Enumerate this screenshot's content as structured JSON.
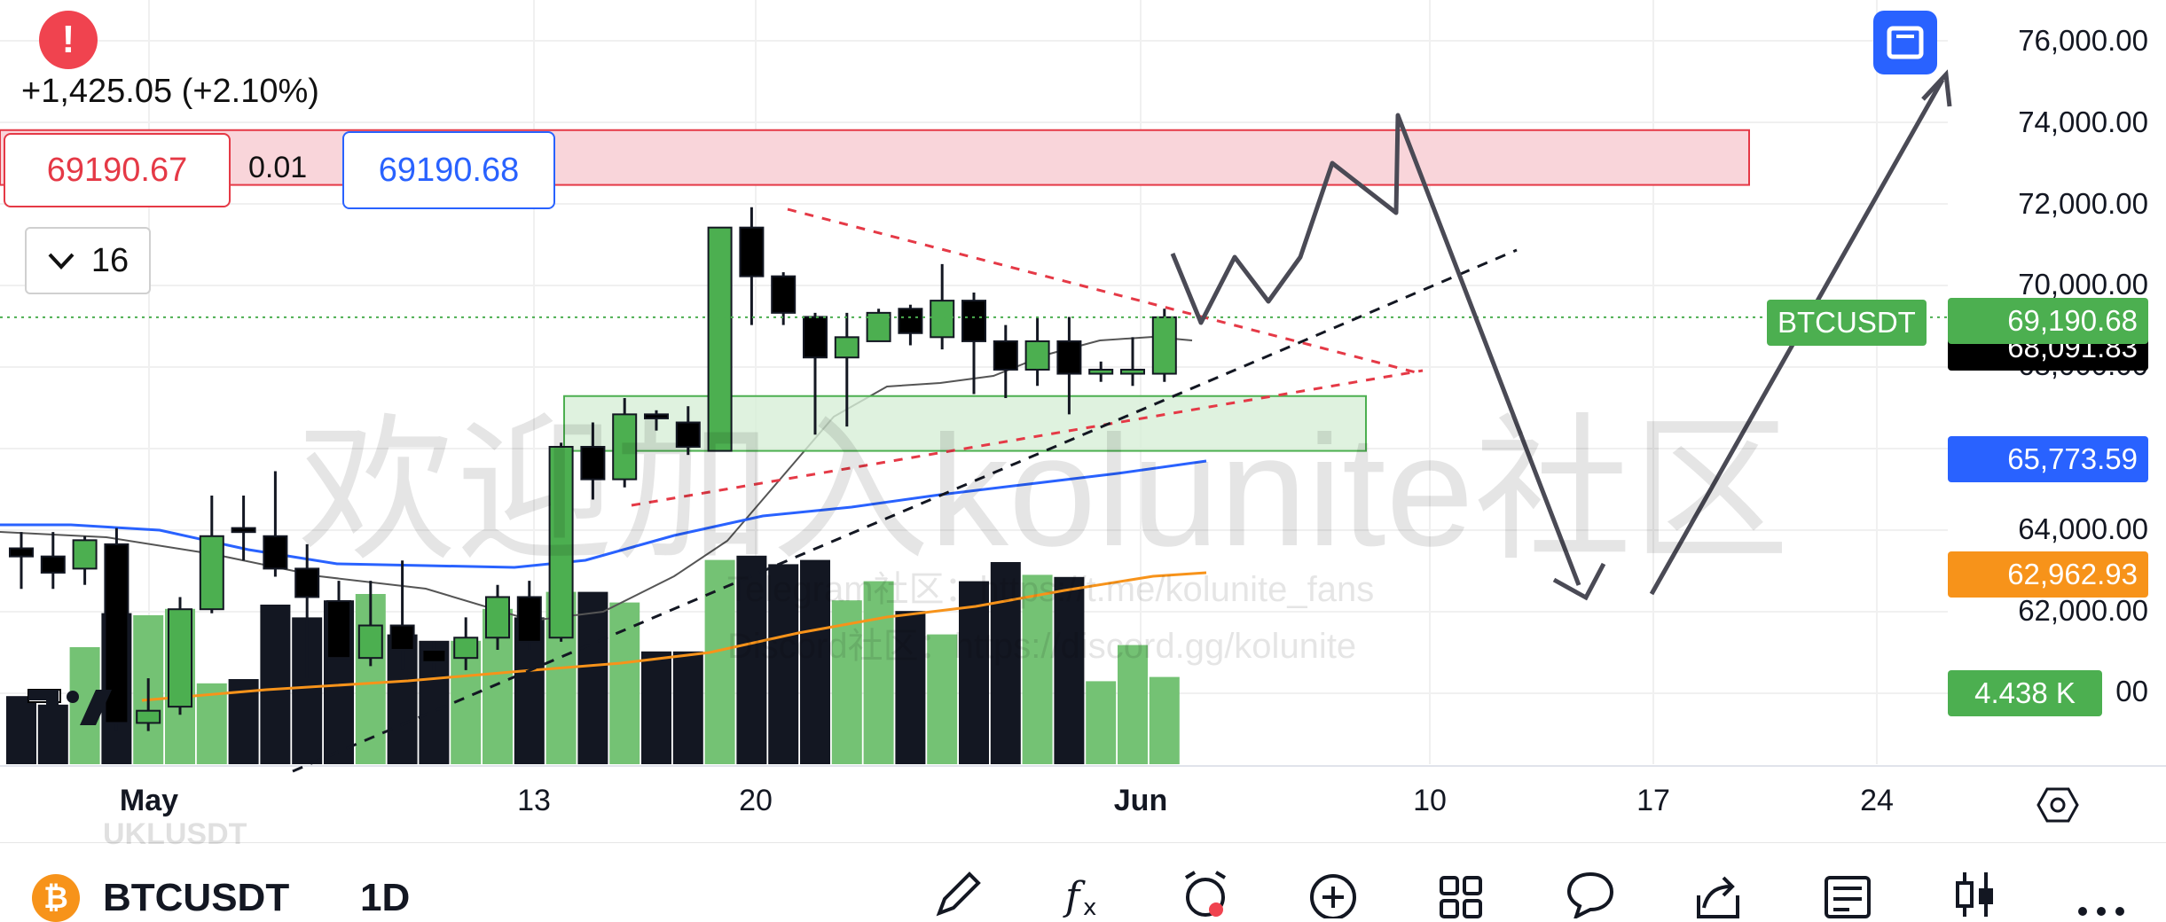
{
  "header": {
    "change": "+1,425.05 (+2.10%)",
    "bid": "69190.67",
    "spread": "0.01",
    "ask": "69190.68",
    "indicator_count": "16"
  },
  "price_axis": {
    "labels": [
      "76,000.00",
      "74,000.00",
      "72,000.00",
      "70,000.00",
      "68,000.00",
      "64,000.00",
      "62,000.00"
    ],
    "tags": {
      "symbol": "BTCUSDT",
      "last_price": "69,190.68",
      "hidden_price": "68,091.83",
      "ma_blue": "65,773.59",
      "ma_orange": "62,962.93",
      "volume": "4.438 K"
    }
  },
  "time_axis": [
    "May",
    "13",
    "20",
    "Jun",
    "10",
    "17",
    "24"
  ],
  "watermark": {
    "main": "欢迎加入kolunite社区",
    "telegram": "Telegram社区：https://t.me/kolunite_fans",
    "discord": "Discord社区：https://discord.gg/kolunite"
  },
  "bottom_bar": {
    "symbol": "BTCUSDT",
    "interval": "1D",
    "ghost_symbol": "UKLUSDT",
    "coin_icon": "bitcoin-icon",
    "tools": [
      "pencil-icon",
      "fx-icon",
      "alarm-icon",
      "plus-circle-icon",
      "grid-icon",
      "chat-bubble-icon",
      "share-icon",
      "news-icon",
      "candles-icon",
      "more-icon"
    ]
  },
  "colors": {
    "up": "#4caf50",
    "down": "#000000",
    "resistance_zone": "#f9d5da",
    "support_zone": "#d7efd7",
    "ma_blue": "#2962ff",
    "ma_orange": "#f7931a",
    "alert": "#f0434f"
  },
  "chart_data": {
    "type": "candlestick",
    "interval": "1D",
    "x_labels": [
      "May",
      "13",
      "20",
      "Jun",
      "10",
      "17",
      "24"
    ],
    "ylim": [
      59000,
      76500
    ],
    "candles": [
      {
        "o": 63500,
        "h": 63900,
        "l": 62500,
        "c": 63300
      },
      {
        "o": 63300,
        "h": 63900,
        "l": 62500,
        "c": 62900
      },
      {
        "o": 63000,
        "h": 63800,
        "l": 62600,
        "c": 63700
      },
      {
        "o": 63600,
        "h": 64000,
        "l": 59000,
        "c": 59200
      },
      {
        "o": 59200,
        "h": 60300,
        "l": 59000,
        "c": 59500
      },
      {
        "o": 59600,
        "h": 62300,
        "l": 59400,
        "c": 62000
      },
      {
        "o": 62000,
        "h": 64800,
        "l": 61900,
        "c": 63800
      },
      {
        "o": 64000,
        "h": 64800,
        "l": 63200,
        "c": 63900
      },
      {
        "o": 63800,
        "h": 65400,
        "l": 62800,
        "c": 63000
      },
      {
        "o": 63000,
        "h": 63600,
        "l": 60300,
        "c": 62300
      },
      {
        "o": 62200,
        "h": 62700,
        "l": 60300,
        "c": 60800
      },
      {
        "o": 60800,
        "h": 62700,
        "l": 60600,
        "c": 61600
      },
      {
        "o": 61600,
        "h": 63200,
        "l": 60500,
        "c": 61000
      },
      {
        "o": 61000,
        "h": 61200,
        "l": 60400,
        "c": 60700
      },
      {
        "o": 60800,
        "h": 61800,
        "l": 60500,
        "c": 61300
      },
      {
        "o": 61300,
        "h": 62600,
        "l": 61000,
        "c": 62300
      },
      {
        "o": 62300,
        "h": 62700,
        "l": 61000,
        "c": 61200
      },
      {
        "o": 61300,
        "h": 66100,
        "l": 61200,
        "c": 66000
      },
      {
        "o": 66000,
        "h": 66600,
        "l": 64700,
        "c": 65200
      },
      {
        "o": 65200,
        "h": 67200,
        "l": 65000,
        "c": 66800
      },
      {
        "o": 66800,
        "h": 66900,
        "l": 66400,
        "c": 66700
      },
      {
        "o": 66600,
        "h": 67000,
        "l": 65800,
        "c": 66000
      },
      {
        "o": 65900,
        "h": 71400,
        "l": 65900,
        "c": 71400
      },
      {
        "o": 71400,
        "h": 71900,
        "l": 69000,
        "c": 70200
      },
      {
        "o": 70200,
        "h": 70300,
        "l": 69000,
        "c": 69300
      },
      {
        "o": 69200,
        "h": 69300,
        "l": 66300,
        "c": 68200
      },
      {
        "o": 68200,
        "h": 69300,
        "l": 66500,
        "c": 68700
      },
      {
        "o": 68600,
        "h": 69400,
        "l": 68600,
        "c": 69300
      },
      {
        "o": 69400,
        "h": 69500,
        "l": 68500,
        "c": 68800
      },
      {
        "o": 68700,
        "h": 70500,
        "l": 68400,
        "c": 69600
      },
      {
        "o": 69600,
        "h": 69800,
        "l": 67300,
        "c": 68600
      },
      {
        "o": 68600,
        "h": 69000,
        "l": 67200,
        "c": 67900
      },
      {
        "o": 67900,
        "h": 69200,
        "l": 67500,
        "c": 68600
      },
      {
        "o": 68600,
        "h": 69200,
        "l": 66800,
        "c": 67800
      },
      {
        "o": 67800,
        "h": 68100,
        "l": 67600,
        "c": 67900
      },
      {
        "o": 67800,
        "h": 68700,
        "l": 67500,
        "c": 67900
      },
      {
        "o": 67800,
        "h": 69400,
        "l": 67600,
        "c": 69190.68
      }
    ],
    "volume_relative": [
      0.32,
      0.28,
      0.55,
      0.71,
      0.7,
      0.73,
      0.38,
      0.4,
      0.75,
      0.69,
      0.77,
      0.8,
      0.61,
      0.58,
      0.58,
      0.73,
      0.69,
      0.81,
      0.81,
      0.76,
      0.53,
      0.53,
      0.96,
      0.98,
      0.94,
      0.96,
      0.77,
      0.86,
      0.72,
      0.61,
      0.86,
      0.95,
      0.89,
      0.88,
      0.39,
      0.56,
      0.41
    ],
    "volume_last": "4.438 K",
    "moving_averages": [
      {
        "name": "MA (blue)",
        "last": "65,773.59"
      },
      {
        "name": "MA (orange)",
        "last": "62,962.93"
      }
    ]
  }
}
